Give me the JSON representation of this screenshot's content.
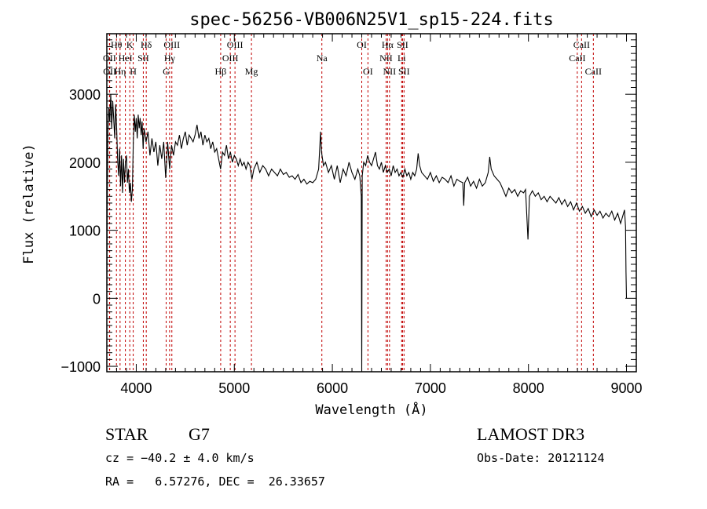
{
  "chart_data": {
    "type": "line",
    "title": "spec-56256-VB006N25V1_sp15-224.fits",
    "xlabel": "Wavelength (Å)",
    "ylabel": "Flux (relative)",
    "xlim": [
      3700,
      9100
    ],
    "ylim": [
      -1080,
      3890
    ],
    "xticks": [
      4000,
      5000,
      6000,
      7000,
      8000,
      9000
    ],
    "xtick_labels": [
      "4000",
      "5000",
      "6000",
      "7000",
      "8000",
      "9000"
    ],
    "yticks": [
      -1000,
      0,
      1000,
      2000,
      3000
    ],
    "ytick_labels": [
      "−1000",
      "0",
      "1000",
      "2000",
      "3000"
    ],
    "grid": false,
    "line_color": "#000000",
    "marker_line_color": "#c00000",
    "spectrum": [
      [
        3700,
        0
      ],
      [
        3705,
        1500
      ],
      [
        3710,
        2400
      ],
      [
        3720,
        2800
      ],
      [
        3730,
        2600
      ],
      [
        3740,
        3000
      ],
      [
        3750,
        2500
      ],
      [
        3760,
        2900
      ],
      [
        3770,
        2650
      ],
      [
        3780,
        2350
      ],
      [
        3790,
        2850
      ],
      [
        3800,
        2500
      ],
      [
        3810,
        2050
      ],
      [
        3820,
        1800
      ],
      [
        3830,
        2200
      ],
      [
        3840,
        1650
      ],
      [
        3850,
        2100
      ],
      [
        3860,
        1550
      ],
      [
        3870,
        2050
      ],
      [
        3880,
        1700
      ],
      [
        3890,
        2000
      ],
      [
        3900,
        2100
      ],
      [
        3910,
        1700
      ],
      [
        3920,
        1900
      ],
      [
        3930,
        1550
      ],
      [
        3940,
        1700
      ],
      [
        3950,
        1420
      ],
      [
        3960,
        1600
      ],
      [
        3970,
        2300
      ],
      [
        3980,
        2700
      ],
      [
        3990,
        2450
      ],
      [
        4000,
        2650
      ],
      [
        4010,
        2350
      ],
      [
        4020,
        2700
      ],
      [
        4030,
        2500
      ],
      [
        4040,
        2650
      ],
      [
        4050,
        2400
      ],
      [
        4060,
        2600
      ],
      [
        4070,
        2200
      ],
      [
        4080,
        2500
      ],
      [
        4100,
        2300
      ],
      [
        4120,
        2450
      ],
      [
        4140,
        2100
      ],
      [
        4160,
        2350
      ],
      [
        4180,
        2150
      ],
      [
        4200,
        2300
      ],
      [
        4220,
        1950
      ],
      [
        4240,
        2250
      ],
      [
        4260,
        2050
      ],
      [
        4280,
        2300
      ],
      [
        4300,
        1770
      ],
      [
        4310,
        2000
      ],
      [
        4320,
        2300
      ],
      [
        4340,
        1900
      ],
      [
        4360,
        2250
      ],
      [
        4380,
        2100
      ],
      [
        4400,
        2300
      ],
      [
        4420,
        2250
      ],
      [
        4440,
        2400
      ],
      [
        4460,
        2200
      ],
      [
        4480,
        2350
      ],
      [
        4500,
        2450
      ],
      [
        4520,
        2250
      ],
      [
        4540,
        2400
      ],
      [
        4560,
        2350
      ],
      [
        4580,
        2300
      ],
      [
        4600,
        2400
      ],
      [
        4620,
        2550
      ],
      [
        4640,
        2350
      ],
      [
        4660,
        2450
      ],
      [
        4680,
        2250
      ],
      [
        4700,
        2400
      ],
      [
        4720,
        2300
      ],
      [
        4740,
        2350
      ],
      [
        4760,
        2200
      ],
      [
        4780,
        2300
      ],
      [
        4800,
        2150
      ],
      [
        4820,
        2200
      ],
      [
        4840,
        2050
      ],
      [
        4860,
        1900
      ],
      [
        4880,
        2150
      ],
      [
        4900,
        2100
      ],
      [
        4920,
        2250
      ],
      [
        4940,
        2050
      ],
      [
        4960,
        2150
      ],
      [
        4980,
        2000
      ],
      [
        5000,
        2100
      ],
      [
        5020,
        2050
      ],
      [
        5040,
        1950
      ],
      [
        5060,
        2050
      ],
      [
        5080,
        1950
      ],
      [
        5100,
        2000
      ],
      [
        5120,
        1900
      ],
      [
        5140,
        2000
      ],
      [
        5160,
        1950
      ],
      [
        5180,
        1750
      ],
      [
        5200,
        1900
      ],
      [
        5230,
        2000
      ],
      [
        5260,
        1850
      ],
      [
        5290,
        1950
      ],
      [
        5320,
        1900
      ],
      [
        5350,
        1800
      ],
      [
        5380,
        1900
      ],
      [
        5410,
        1850
      ],
      [
        5440,
        1800
      ],
      [
        5470,
        1900
      ],
      [
        5500,
        1820
      ],
      [
        5530,
        1850
      ],
      [
        5560,
        1780
      ],
      [
        5590,
        1800
      ],
      [
        5620,
        1750
      ],
      [
        5650,
        1820
      ],
      [
        5680,
        1700
      ],
      [
        5710,
        1750
      ],
      [
        5740,
        1680
      ],
      [
        5770,
        1720
      ],
      [
        5800,
        1700
      ],
      [
        5830,
        1750
      ],
      [
        5860,
        1900
      ],
      [
        5880,
        2450
      ],
      [
        5890,
        2150
      ],
      [
        5910,
        1950
      ],
      [
        5930,
        2000
      ],
      [
        5960,
        1850
      ],
      [
        5990,
        1950
      ],
      [
        6020,
        1750
      ],
      [
        6050,
        1950
      ],
      [
        6080,
        1700
      ],
      [
        6110,
        1900
      ],
      [
        6140,
        1800
      ],
      [
        6170,
        2000
      ],
      [
        6200,
        1850
      ],
      [
        6230,
        1750
      ],
      [
        6260,
        1900
      ],
      [
        6280,
        1800
      ],
      [
        6295,
        1500
      ],
      [
        6300,
        -1080
      ],
      [
        6305,
        1800
      ],
      [
        6320,
        2000
      ],
      [
        6340,
        1950
      ],
      [
        6360,
        2100
      ],
      [
        6380,
        2000
      ],
      [
        6400,
        1950
      ],
      [
        6420,
        2050
      ],
      [
        6440,
        2150
      ],
      [
        6460,
        1950
      ],
      [
        6480,
        1900
      ],
      [
        6500,
        2000
      ],
      [
        6520,
        1850
      ],
      [
        6540,
        1950
      ],
      [
        6560,
        1850
      ],
      [
        6580,
        1900
      ],
      [
        6600,
        1800
      ],
      [
        6620,
        1950
      ],
      [
        6640,
        1850
      ],
      [
        6660,
        1900
      ],
      [
        6680,
        1800
      ],
      [
        6700,
        1850
      ],
      [
        6720,
        1780
      ],
      [
        6740,
        1900
      ],
      [
        6760,
        1800
      ],
      [
        6780,
        1850
      ],
      [
        6800,
        1750
      ],
      [
        6820,
        1850
      ],
      [
        6840,
        1800
      ],
      [
        6860,
        1900
      ],
      [
        6875,
        2130
      ],
      [
        6890,
        1950
      ],
      [
        6910,
        1850
      ],
      [
        6940,
        1800
      ],
      [
        6970,
        1750
      ],
      [
        7000,
        1850
      ],
      [
        7030,
        1720
      ],
      [
        7060,
        1800
      ],
      [
        7090,
        1700
      ],
      [
        7120,
        1780
      ],
      [
        7150,
        1750
      ],
      [
        7180,
        1700
      ],
      [
        7210,
        1800
      ],
      [
        7240,
        1650
      ],
      [
        7270,
        1750
      ],
      [
        7300,
        1720
      ],
      [
        7330,
        1700
      ],
      [
        7340,
        1360
      ],
      [
        7350,
        1700
      ],
      [
        7380,
        1780
      ],
      [
        7410,
        1650
      ],
      [
        7440,
        1720
      ],
      [
        7470,
        1620
      ],
      [
        7500,
        1750
      ],
      [
        7530,
        1650
      ],
      [
        7560,
        1700
      ],
      [
        7590,
        1850
      ],
      [
        7605,
        2080
      ],
      [
        7620,
        1900
      ],
      [
        7650,
        1800
      ],
      [
        7680,
        1750
      ],
      [
        7710,
        1700
      ],
      [
        7740,
        1600
      ],
      [
        7770,
        1500
      ],
      [
        7800,
        1620
      ],
      [
        7830,
        1550
      ],
      [
        7860,
        1600
      ],
      [
        7890,
        1500
      ],
      [
        7920,
        1580
      ],
      [
        7950,
        1550
      ],
      [
        7970,
        1600
      ],
      [
        7995,
        865
      ],
      [
        8010,
        1500
      ],
      [
        8040,
        1580
      ],
      [
        8070,
        1500
      ],
      [
        8100,
        1550
      ],
      [
        8130,
        1450
      ],
      [
        8160,
        1500
      ],
      [
        8190,
        1420
      ],
      [
        8220,
        1500
      ],
      [
        8250,
        1450
      ],
      [
        8280,
        1400
      ],
      [
        8310,
        1480
      ],
      [
        8340,
        1380
      ],
      [
        8370,
        1450
      ],
      [
        8400,
        1350
      ],
      [
        8430,
        1420
      ],
      [
        8460,
        1300
      ],
      [
        8490,
        1400
      ],
      [
        8520,
        1280
      ],
      [
        8550,
        1350
      ],
      [
        8580,
        1250
      ],
      [
        8610,
        1320
      ],
      [
        8640,
        1200
      ],
      [
        8670,
        1300
      ],
      [
        8700,
        1220
      ],
      [
        8730,
        1280
      ],
      [
        8760,
        1180
      ],
      [
        8790,
        1250
      ],
      [
        8820,
        1200
      ],
      [
        8850,
        1280
      ],
      [
        8880,
        1150
      ],
      [
        8910,
        1250
      ],
      [
        8940,
        1100
      ],
      [
        8960,
        1200
      ],
      [
        8980,
        1300
      ],
      [
        8990,
        1050
      ],
      [
        8995,
        380
      ],
      [
        9000,
        0
      ]
    ],
    "spectral_lines": [
      {
        "label": "Hθ",
        "wavelength": 3798,
        "row": 0
      },
      {
        "label": "K",
        "wavelength": 3934,
        "row": 0
      },
      {
        "label": "Hδ",
        "wavelength": 4102,
        "row": 0
      },
      {
        "label": "OIII",
        "wavelength": 4363,
        "row": 0
      },
      {
        "label": "OIII",
        "wavelength": 5007,
        "row": 0
      },
      {
        "label": "OI",
        "wavelength": 6300,
        "row": 0
      },
      {
        "label": "Hα",
        "wavelength": 6563,
        "row": 0
      },
      {
        "label": "SII",
        "wavelength": 6716,
        "row": 0
      },
      {
        "label": "CaII",
        "wavelength": 8542,
        "row": 0
      },
      {
        "label": "OII",
        "wavelength": 3727,
        "row": 1
      },
      {
        "label": "HeI",
        "wavelength": 3889,
        "row": 1
      },
      {
        "label": "SII",
        "wavelength": 4072,
        "row": 1
      },
      {
        "label": "Hγ",
        "wavelength": 4340,
        "row": 1
      },
      {
        "label": "OIII",
        "wavelength": 4959,
        "row": 1
      },
      {
        "label": "Na",
        "wavelength": 5893,
        "row": 1
      },
      {
        "label": "NII",
        "wavelength": 6548,
        "row": 1
      },
      {
        "label": "Li",
        "wavelength": 6707,
        "row": 1
      },
      {
        "label": "CaII",
        "wavelength": 8498,
        "row": 1
      },
      {
        "label": "OII",
        "wavelength": 3729,
        "row": 2
      },
      {
        "label": "Hη",
        "wavelength": 3835,
        "row": 2
      },
      {
        "label": "H",
        "wavelength": 3969,
        "row": 2
      },
      {
        "label": "G",
        "wavelength": 4305,
        "row": 2
      },
      {
        "label": "Hβ",
        "wavelength": 4861,
        "row": 2
      },
      {
        "label": "Mg",
        "wavelength": 5175,
        "row": 2
      },
      {
        "label": "OI",
        "wavelength": 6363,
        "row": 2
      },
      {
        "label": "NII",
        "wavelength": 6583,
        "row": 2
      },
      {
        "label": "SII",
        "wavelength": 6731,
        "row": 2
      },
      {
        "label": "CaII",
        "wavelength": 8662,
        "row": 2
      }
    ]
  },
  "info": {
    "object_class": "STAR",
    "subclass": "G7",
    "survey": "LAMOST DR3",
    "redshift": "cz = −40.2 ± 4.0 km/s",
    "obs_date": "Obs-Date: 20121124",
    "coords": "RA =   6.57276, DEC =  26.33657"
  }
}
